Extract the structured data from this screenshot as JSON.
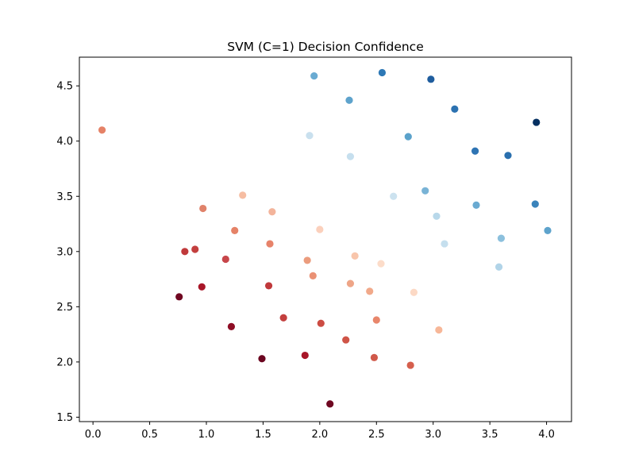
{
  "chart_data": {
    "type": "scatter",
    "title": "SVM (C=1) Decision Confidence",
    "xlabel": "",
    "ylabel": "",
    "xlim": [
      -0.12,
      4.22
    ],
    "ylim": [
      1.46,
      4.76
    ],
    "xticks": [
      "0.0",
      "0.5",
      "1.0",
      "1.5",
      "2.0",
      "2.5",
      "3.0",
      "3.5",
      "4.0"
    ],
    "yticks": [
      "1.5",
      "2.0",
      "2.5",
      "3.0",
      "3.5",
      "4.0",
      "4.5"
    ],
    "grid": false,
    "legend": "none",
    "colormap": "RdBu",
    "points": [
      {
        "x": 0.08,
        "y": 4.1,
        "color": "#e58267"
      },
      {
        "x": 1.95,
        "y": 4.59,
        "color": "#6aabd2"
      },
      {
        "x": 2.26,
        "y": 4.37,
        "color": "#5ea3cc"
      },
      {
        "x": 2.55,
        "y": 4.62,
        "color": "#2d78b6"
      },
      {
        "x": 2.98,
        "y": 4.56,
        "color": "#1f5d9e"
      },
      {
        "x": 3.19,
        "y": 4.29,
        "color": "#2c72b1"
      },
      {
        "x": 3.91,
        "y": 4.17,
        "color": "#053061"
      },
      {
        "x": 1.91,
        "y": 4.05,
        "color": "#c9e0ee"
      },
      {
        "x": 2.78,
        "y": 4.04,
        "color": "#5ba2cb"
      },
      {
        "x": 3.37,
        "y": 3.91,
        "color": "#2e74b3"
      },
      {
        "x": 3.66,
        "y": 3.87,
        "color": "#2a6fae"
      },
      {
        "x": 2.27,
        "y": 3.86,
        "color": "#c6dfee"
      },
      {
        "x": 1.32,
        "y": 3.51,
        "color": "#f6bda2"
      },
      {
        "x": 2.93,
        "y": 3.55,
        "color": "#79b3d6"
      },
      {
        "x": 2.65,
        "y": 3.5,
        "color": "#cce2ef"
      },
      {
        "x": 3.38,
        "y": 3.42,
        "color": "#6aaad1"
      },
      {
        "x": 3.9,
        "y": 3.43,
        "color": "#3a83bb"
      },
      {
        "x": 0.97,
        "y": 3.39,
        "color": "#e0826a"
      },
      {
        "x": 1.58,
        "y": 3.36,
        "color": "#f3b49b"
      },
      {
        "x": 3.03,
        "y": 3.32,
        "color": "#b8d8ea"
      },
      {
        "x": 4.01,
        "y": 3.19,
        "color": "#5ea3cc"
      },
      {
        "x": 1.25,
        "y": 3.19,
        "color": "#e58267"
      },
      {
        "x": 2.0,
        "y": 3.2,
        "color": "#fbd0bc"
      },
      {
        "x": 3.6,
        "y": 3.12,
        "color": "#8cc0dd"
      },
      {
        "x": 1.56,
        "y": 3.07,
        "color": "#e7836a"
      },
      {
        "x": 3.1,
        "y": 3.07,
        "color": "#c5dfee"
      },
      {
        "x": 0.81,
        "y": 3.0,
        "color": "#c0393b"
      },
      {
        "x": 0.9,
        "y": 3.02,
        "color": "#c33f3e"
      },
      {
        "x": 2.31,
        "y": 2.96,
        "color": "#f8c5ab"
      },
      {
        "x": 1.17,
        "y": 2.93,
        "color": "#c7464a"
      },
      {
        "x": 1.89,
        "y": 2.92,
        "color": "#eb9c7d"
      },
      {
        "x": 2.54,
        "y": 2.89,
        "color": "#fcdcc9"
      },
      {
        "x": 3.58,
        "y": 2.86,
        "color": "#b1d4e8"
      },
      {
        "x": 1.94,
        "y": 2.78,
        "color": "#ea9175"
      },
      {
        "x": 2.27,
        "y": 2.71,
        "color": "#eea587"
      },
      {
        "x": 0.96,
        "y": 2.68,
        "color": "#a81628"
      },
      {
        "x": 1.55,
        "y": 2.69,
        "color": "#c0393b"
      },
      {
        "x": 2.44,
        "y": 2.64,
        "color": "#f1a98a"
      },
      {
        "x": 2.83,
        "y": 2.63,
        "color": "#fcd9c5"
      },
      {
        "x": 0.76,
        "y": 2.59,
        "color": "#700721"
      },
      {
        "x": 1.68,
        "y": 2.4,
        "color": "#c33f3e"
      },
      {
        "x": 2.5,
        "y": 2.38,
        "color": "#e8866b"
      },
      {
        "x": 2.01,
        "y": 2.35,
        "color": "#cc4c43"
      },
      {
        "x": 1.22,
        "y": 2.32,
        "color": "#8e0d25"
      },
      {
        "x": 3.05,
        "y": 2.29,
        "color": "#f7b798"
      },
      {
        "x": 2.23,
        "y": 2.2,
        "color": "#cf5447"
      },
      {
        "x": 1.87,
        "y": 2.06,
        "color": "#a81628"
      },
      {
        "x": 1.49,
        "y": 2.03,
        "color": "#6b0620"
      },
      {
        "x": 2.48,
        "y": 2.04,
        "color": "#d0594a"
      },
      {
        "x": 2.8,
        "y": 1.97,
        "color": "#d55f4d"
      },
      {
        "x": 2.09,
        "y": 1.62,
        "color": "#6f0721"
      }
    ]
  }
}
